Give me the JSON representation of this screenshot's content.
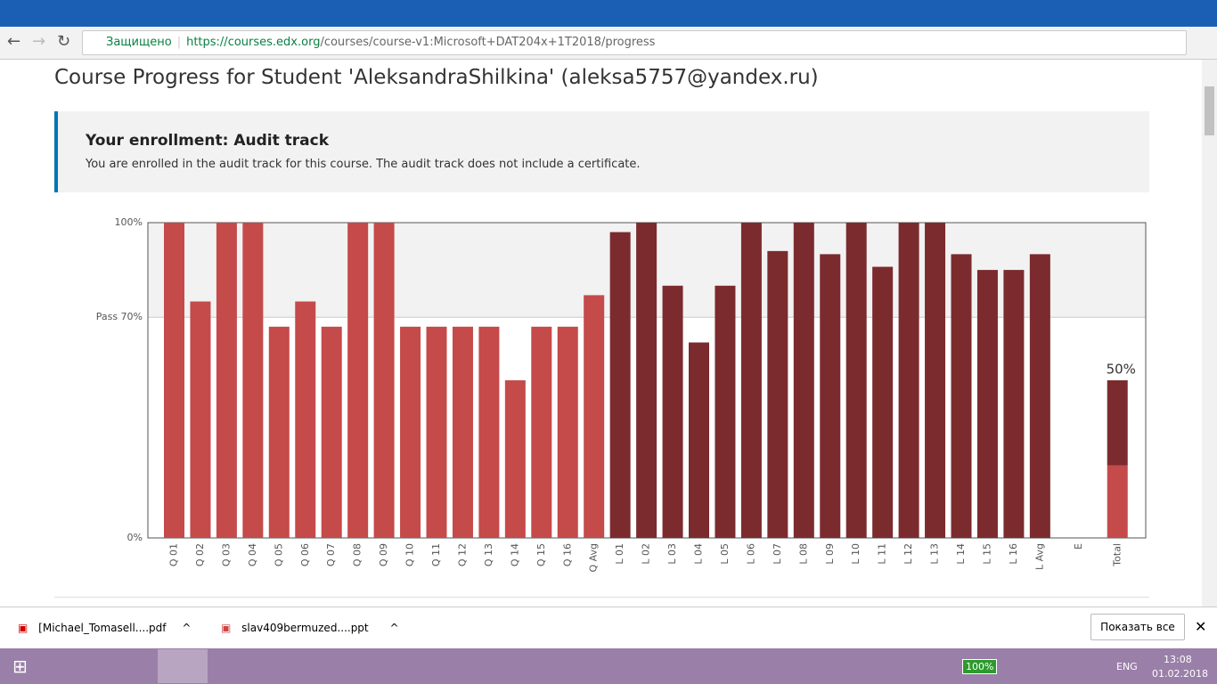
{
  "browser": {
    "secure": "Защищено",
    "url_host": "https://courses.edx.org",
    "url_path": "/courses/course-v1:Microsoft+DAT204x+1T2018/progress"
  },
  "page": {
    "title": "Course Progress for Student 'AleksandraShilkina' (aleksa5757@yandex.ru)",
    "enrollment_title": "Your enrollment: Audit track",
    "enrollment_text": "You are enrolled in the audit track for this course. The audit track does not include a certificate."
  },
  "chart_data": {
    "type": "bar",
    "categories": [
      "Q 01",
      "Q 02",
      "Q 03",
      "Q 04",
      "Q 05",
      "Q 06",
      "Q 07",
      "Q 08",
      "Q 09",
      "Q 10",
      "Q 11",
      "Q 12",
      "Q 13",
      "Q 14",
      "Q 15",
      "Q 16",
      "Q Avg",
      "L 01",
      "L 02",
      "L 03",
      "L 04",
      "L 05",
      "L 06",
      "L 07",
      "L 08",
      "L 09",
      "L 10",
      "L 11",
      "L 12",
      "L 13",
      "L 14",
      "L 15",
      "L 16",
      "L Avg",
      "E",
      "Total"
    ],
    "values": [
      100,
      75,
      100,
      100,
      67,
      75,
      67,
      100,
      100,
      67,
      67,
      67,
      67,
      50,
      67,
      67,
      77,
      97,
      100,
      80,
      62,
      80,
      100,
      91,
      100,
      90,
      100,
      86,
      100,
      100,
      90,
      85,
      85,
      90,
      null,
      null
    ],
    "colors": [
      "#c54a4a",
      "#c54a4a",
      "#c54a4a",
      "#c54a4a",
      "#c54a4a",
      "#c54a4a",
      "#c54a4a",
      "#c54a4a",
      "#c54a4a",
      "#c54a4a",
      "#c54a4a",
      "#c54a4a",
      "#c54a4a",
      "#c54a4a",
      "#c54a4a",
      "#c54a4a",
      "#c54a4a",
      "#7b2b2e",
      "#7b2b2e",
      "#7b2b2e",
      "#7b2b2e",
      "#7b2b2e",
      "#7b2b2e",
      "#7b2b2e",
      "#7b2b2e",
      "#7b2b2e",
      "#7b2b2e",
      "#7b2b2e",
      "#7b2b2e",
      "#7b2b2e",
      "#7b2b2e",
      "#7b2b2e",
      "#7b2b2e",
      "#7b2b2e",
      null,
      null
    ],
    "total": {
      "values": [
        23,
        27
      ],
      "colors": [
        "#c54a4a",
        "#7b2b2e"
      ],
      "label": "50%"
    },
    "ylim": [
      0,
      100
    ],
    "yticks": [
      {
        "value": 0,
        "label": "0%"
      },
      {
        "value": 70,
        "label": "Pass 70%"
      },
      {
        "value": 100,
        "label": "100%"
      }
    ]
  },
  "downloads": [
    "[Michael_Tomasell....pdf",
    "slav409bermuzed....ppt"
  ],
  "show_all": "Показать все",
  "taskbar": {
    "battery": "100%",
    "lang": "ENG",
    "time": "13:08",
    "date": "01.02.2018"
  }
}
